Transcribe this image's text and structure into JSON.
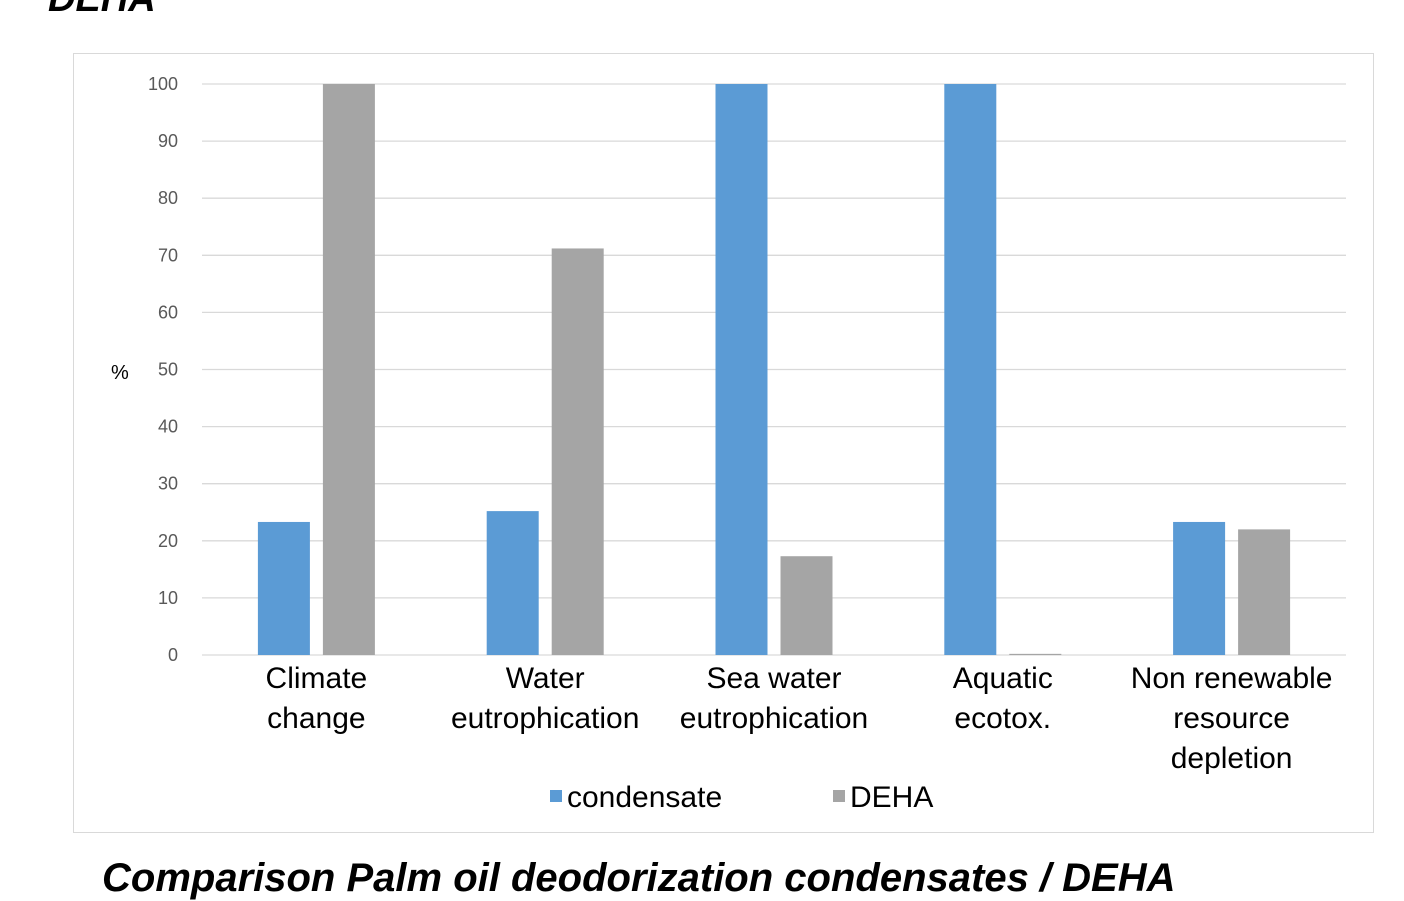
{
  "captions": {
    "top": "DEHA",
    "bottom": "Comparison Palm oil deodorization condensates / DEHA"
  },
  "colors": {
    "condensate": "#5b9bd5",
    "DEHA": "#a5a5a5",
    "gridline": "#d9d9d9"
  },
  "chart_data": {
    "type": "bar",
    "title": "",
    "xlabel": "",
    "ylabel": "%",
    "ylim": [
      0,
      100
    ],
    "yticks": [
      0,
      10,
      20,
      30,
      40,
      50,
      60,
      70,
      80,
      90,
      100
    ],
    "grid": true,
    "legend_position": "bottom",
    "categories": [
      [
        "Climate",
        "change"
      ],
      [
        "Water",
        "eutrophication"
      ],
      [
        "Sea water",
        "eutrophication"
      ],
      [
        "Aquatic",
        "ecotox."
      ],
      [
        "Non renewable",
        "resource",
        "depletion"
      ]
    ],
    "series": [
      {
        "name": "condensate",
        "values": [
          23.3,
          25.2,
          100,
          100,
          23.3
        ]
      },
      {
        "name": "DEHA",
        "values": [
          100,
          71.2,
          17.3,
          0.2,
          22.0
        ]
      }
    ]
  }
}
